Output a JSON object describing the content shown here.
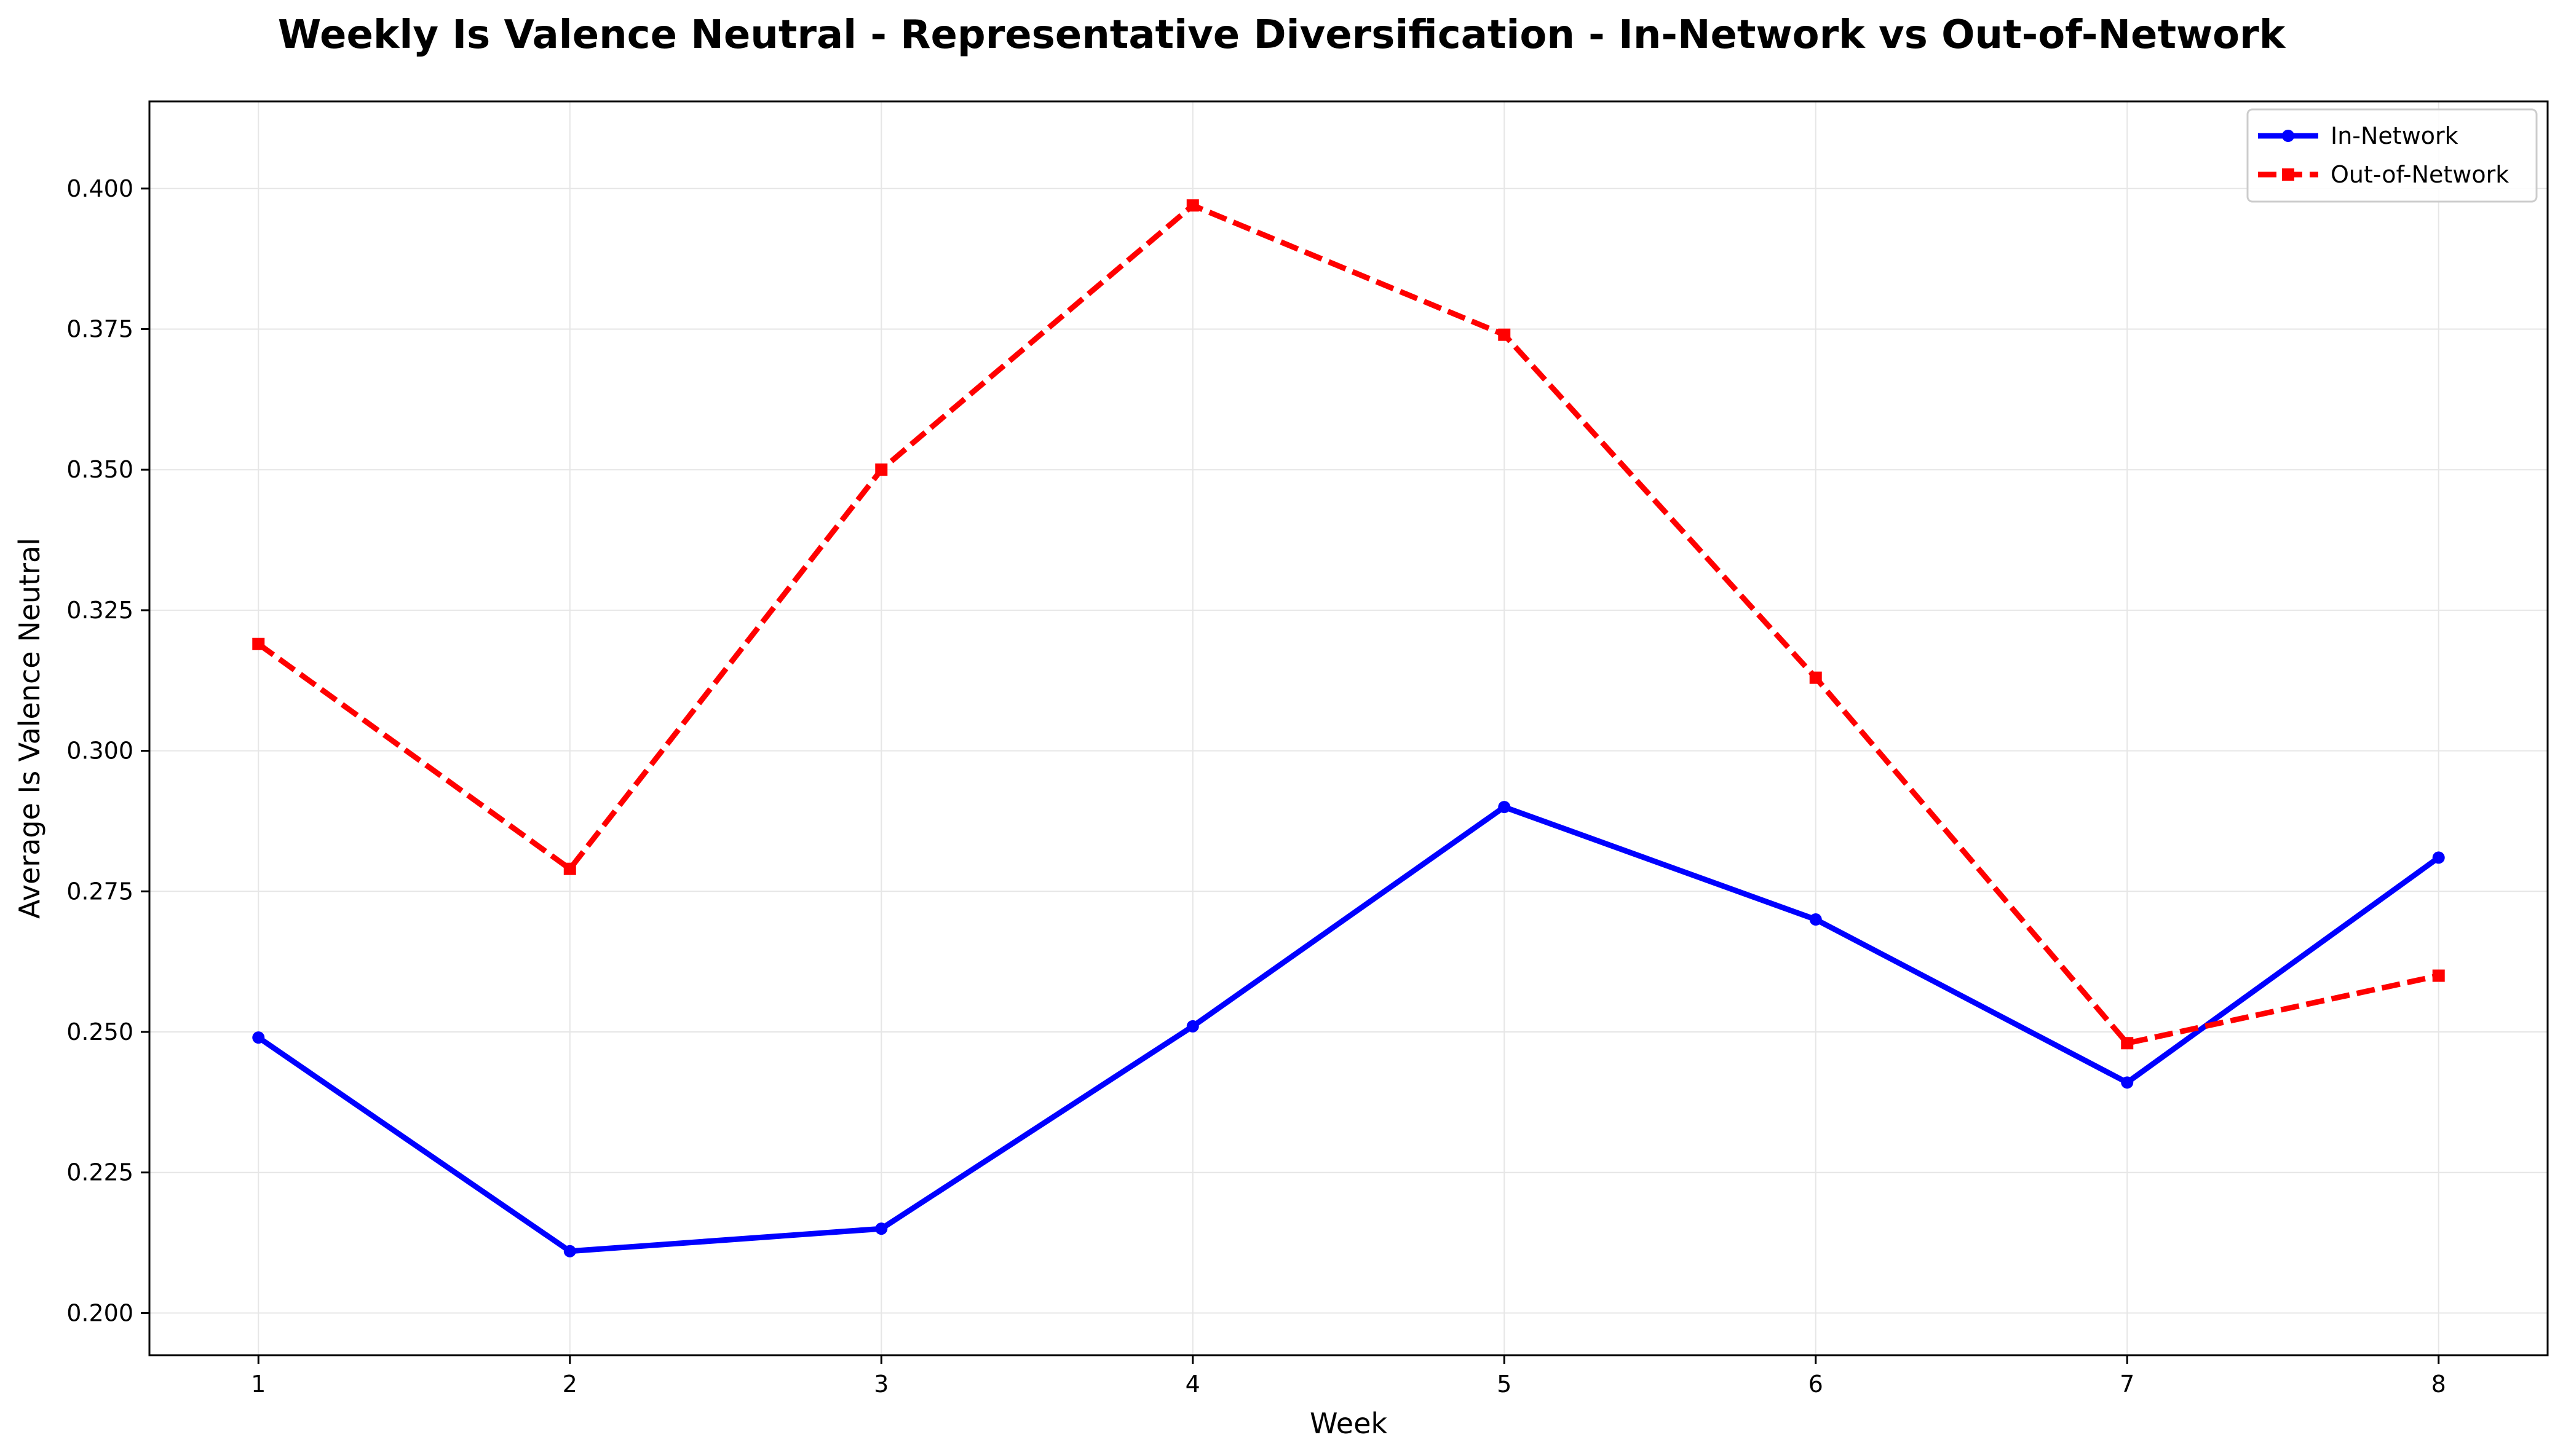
{
  "chart_data": {
    "type": "line",
    "title": "Weekly Is Valence Neutral - Representative Diversification - In-Network vs Out-of-Network",
    "xlabel": "Week",
    "ylabel": "Average Is Valence Neutral",
    "x": [
      1,
      2,
      3,
      4,
      5,
      6,
      7,
      8
    ],
    "xticks": [
      "1",
      "2",
      "3",
      "4",
      "5",
      "6",
      "7",
      "8"
    ],
    "xlim": [
      0.65,
      8.35
    ],
    "ylim": [
      0.1925,
      0.4155
    ],
    "yticks": [
      "0.200",
      "0.225",
      "0.250",
      "0.275",
      "0.300",
      "0.325",
      "0.350",
      "0.375",
      "0.400"
    ],
    "grid": true,
    "legend_position": "top-right",
    "series": [
      {
        "name": "In-Network",
        "color": "#0000ff",
        "line_style": "solid",
        "marker": "circle",
        "values": [
          0.249,
          0.211,
          0.215,
          0.251,
          0.29,
          0.27,
          0.241,
          0.281
        ]
      },
      {
        "name": "Out-of-Network",
        "color": "#ff0000",
        "line_style": "dashed",
        "marker": "square",
        "values": [
          0.319,
          0.279,
          0.35,
          0.397,
          0.374,
          0.313,
          0.248,
          0.26
        ]
      }
    ]
  }
}
